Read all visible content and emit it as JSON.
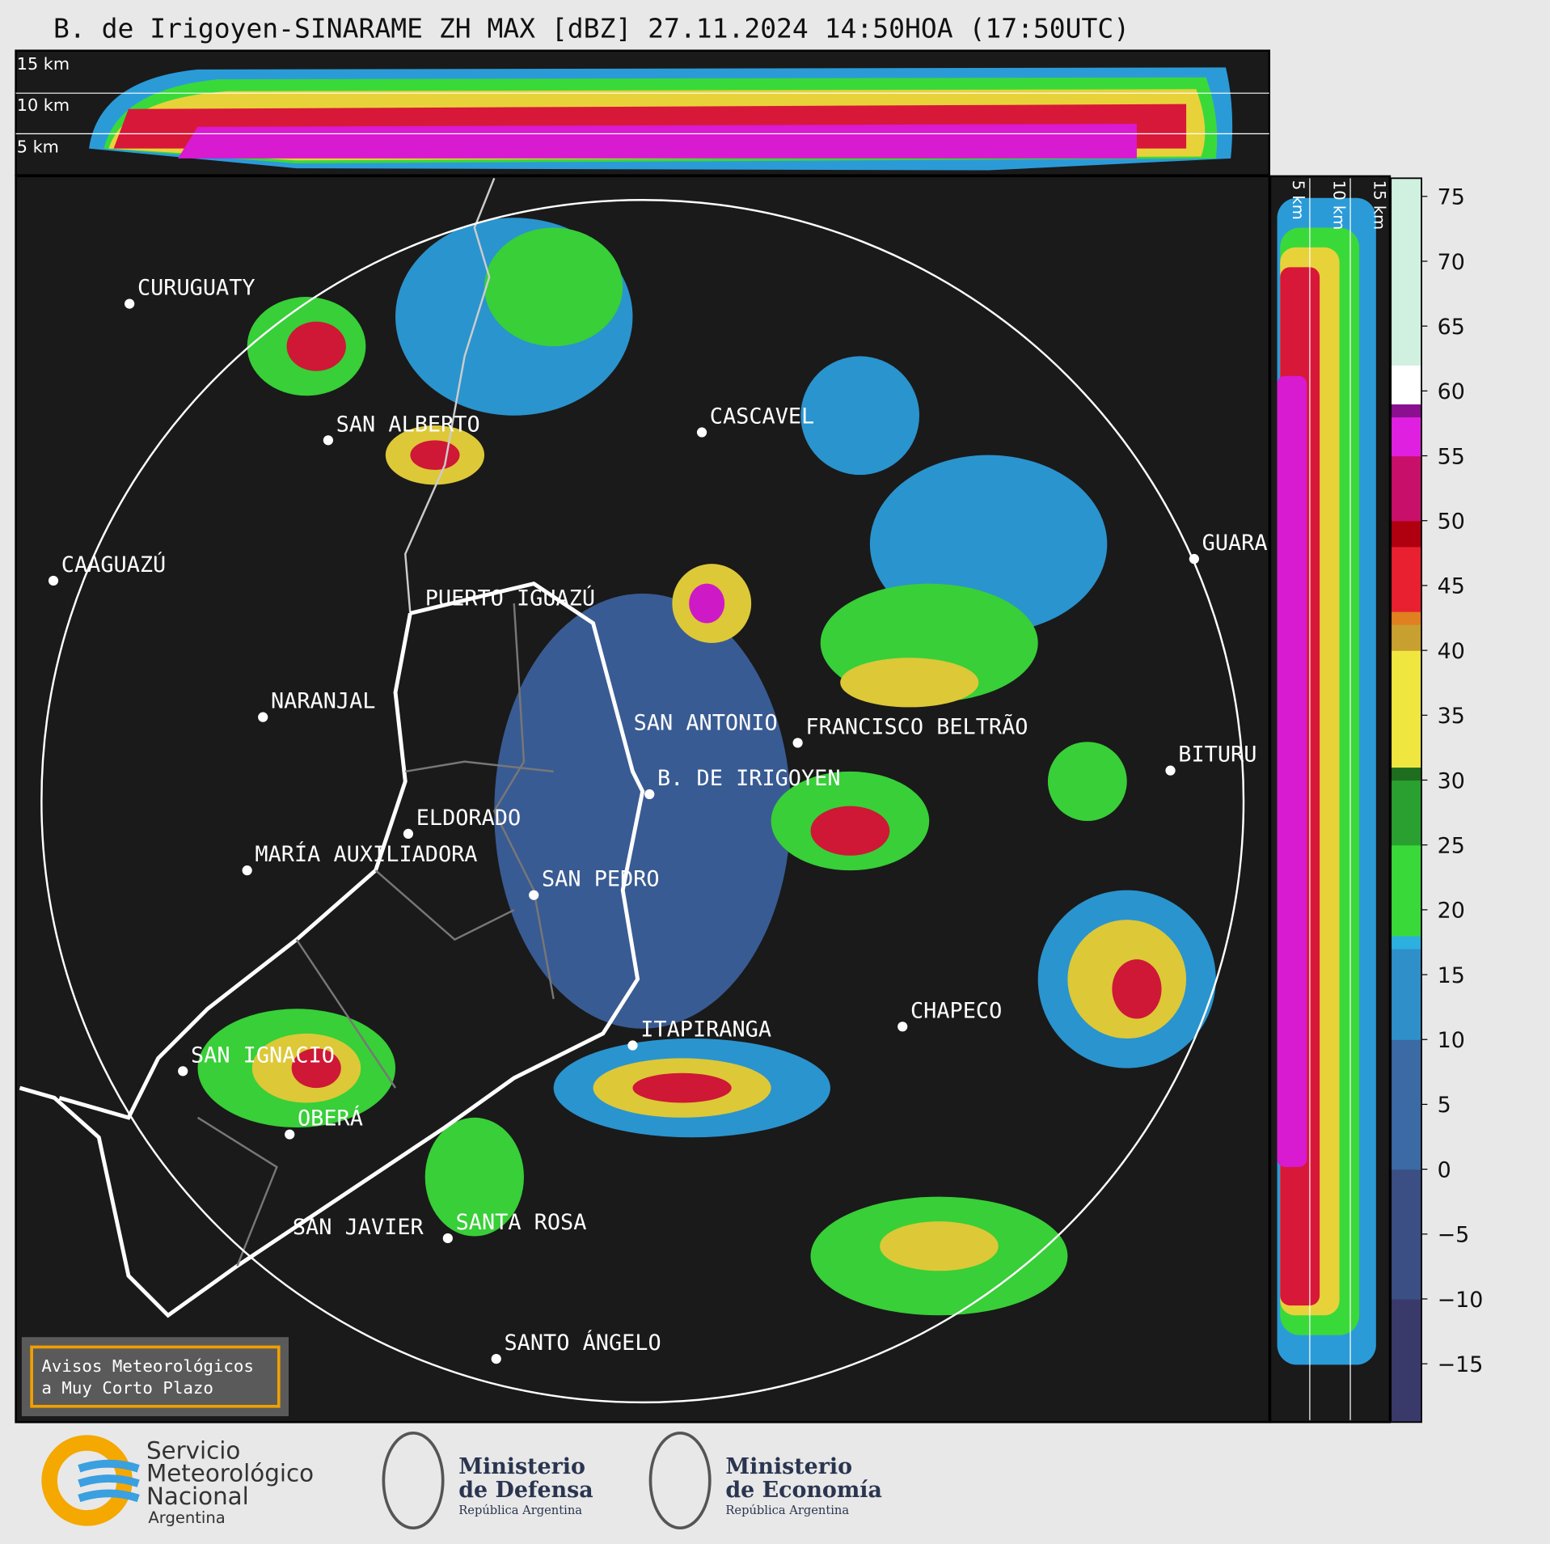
{
  "title": "B. de Irigoyen-SINARAME ZH MAX [dBZ] 27.11.2024 14:50HOA (17:50UTC)",
  "top_heights": [
    "15 km",
    "10 km",
    "5 km"
  ],
  "side_heights": [
    "5 km",
    "10 km",
    "15 km"
  ],
  "cities": [
    "CURUGUATY",
    "SAN ALBERTO",
    "CASCAVEL",
    "CAAGUAZÚ",
    "GUARA",
    "PUERTO IGUAZÚ",
    "NARANJAL",
    "SAN ANTONIO",
    "FRANCISCO BELTRÃO",
    "BITURU",
    "B. DE IRIGOYEN",
    "ELDORADO",
    "MARÍA AUXILIADORA",
    "SAN PEDRO",
    "CHAPECO",
    "ITAPIRANGA",
    "SAN IGNACIO",
    "OBERÁ",
    "SAN JAVIER",
    "SANTA ROSA",
    "SANTO ÁNGELO"
  ],
  "colorbar": {
    "lim": [
      -19.5,
      76.4
    ],
    "ticks": [
      {
        "value": -15,
        "label": "−15"
      },
      {
        "value": -10,
        "label": "−10"
      },
      {
        "value": -5,
        "label": "−5"
      },
      0,
      5,
      10,
      15,
      20,
      25,
      30,
      35,
      40,
      45,
      50,
      55,
      60,
      65,
      70,
      75
    ]
  },
  "warning": [
    "Avisos Meteorológicos",
    "a Muy Corto Plazo"
  ],
  "logos": {
    "smn": [
      "Servicio",
      "Meteorológico",
      "Nacional",
      "Argentina"
    ],
    "defensa": [
      "Ministerio",
      "de Defensa",
      "República Argentina"
    ],
    "economia": [
      "Ministerio",
      "de Economía",
      "República Argentina"
    ]
  }
}
